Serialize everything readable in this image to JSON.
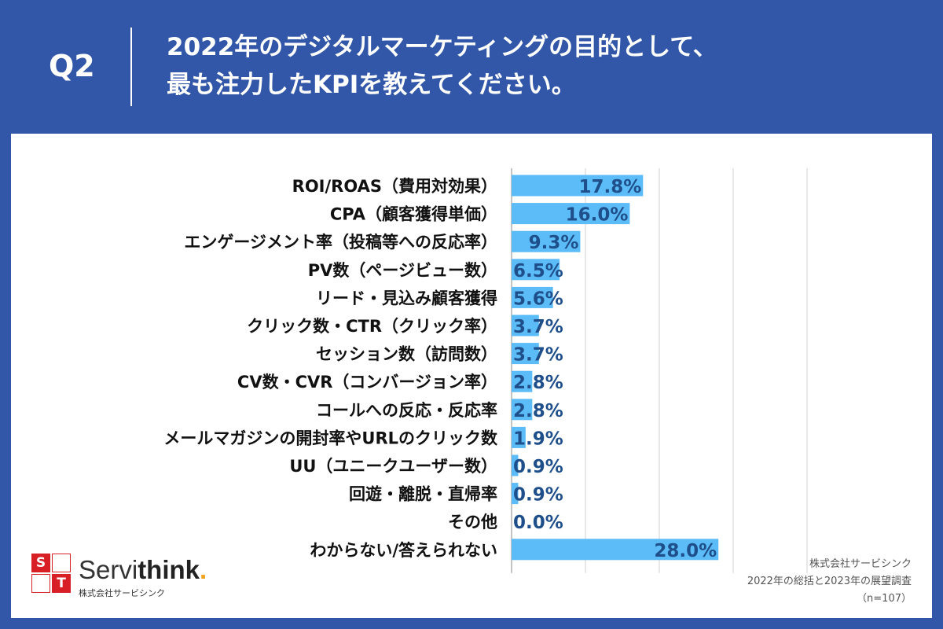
{
  "header": {
    "q_number": "Q2",
    "title_line1": "2022年のデジタルマーケティングの目的として、",
    "title_line2": "最も注力したKPIを教えてください。"
  },
  "logo": {
    "box_letters": [
      "S",
      "T"
    ],
    "name_plain": "Servi",
    "name_bold": "think",
    "name_dot": ".",
    "sub": "株式会社サービシンク"
  },
  "source": {
    "line1": "株式会社サービシンク",
    "line2": "2022年の総括と2023年の展望調査",
    "line3": "（n=107）"
  },
  "colors": {
    "header_bg": "#3257a8",
    "bar": "#5bbcf7",
    "value_text": "#1f4f8a",
    "logo_red": "#d91f26",
    "logo_accent": "#f3a21b"
  },
  "chart_data": {
    "type": "bar",
    "orientation": "horizontal",
    "unit": "%",
    "xlim": [
      0,
      40
    ],
    "grid": true,
    "categories": [
      "ROI/ROAS（費用対効果）",
      "CPA（顧客獲得単価）",
      "エンゲージメント率（投稿等への反応率）",
      "PV数（ページビュー数）",
      "リード・見込み顧客獲得",
      "クリック数・CTR（クリック率）",
      "セッション数（訪問数）",
      "CV数・CVR（コンバージョン率）",
      "コールへの反応・反応率",
      "メールマガジンの開封率やURLのクリック数",
      "UU（ユニークユーザー数）",
      "回遊・離脱・直帰率",
      "その他",
      "わからない/答えられない"
    ],
    "values": [
      17.8,
      16.0,
      9.3,
      6.5,
      5.6,
      3.7,
      3.7,
      2.8,
      2.8,
      1.9,
      0.9,
      0.9,
      0.0,
      28.0
    ],
    "value_labels": [
      "17.8%",
      "16.0%",
      "9.3%",
      "6.5%",
      "5.6%",
      "3.7%",
      "3.7%",
      "2.8%",
      "2.8%",
      "1.9%",
      "0.9%",
      "0.9%",
      "0.0%",
      "28.0%"
    ]
  }
}
